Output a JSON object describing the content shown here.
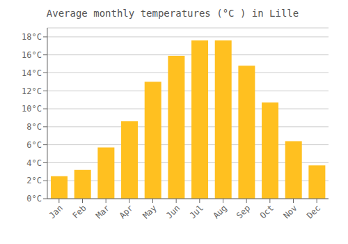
{
  "chart_data": {
    "type": "bar",
    "title": "Average monthly temperatures (°C ) in Lille",
    "categories": [
      "Jan",
      "Feb",
      "Mar",
      "Apr",
      "May",
      "Jun",
      "Jul",
      "Aug",
      "Sep",
      "Oct",
      "Nov",
      "Dec"
    ],
    "values": [
      2.5,
      3.2,
      5.7,
      8.6,
      13.0,
      15.9,
      17.6,
      17.6,
      14.8,
      10.7,
      6.4,
      3.7
    ],
    "color": "#FFC020",
    "ylim": [
      0,
      19
    ],
    "yticks": [
      {
        "value": 0,
        "label": "0°C"
      },
      {
        "value": 2,
        "label": "2°C"
      },
      {
        "value": 4,
        "label": "4°C"
      },
      {
        "value": 6,
        "label": "6°C"
      },
      {
        "value": 8,
        "label": "8°C"
      },
      {
        "value": 10,
        "label": "10°C"
      },
      {
        "value": 12,
        "label": "12°C"
      },
      {
        "value": 14,
        "label": "14°C"
      },
      {
        "value": 16,
        "label": "16°C"
      },
      {
        "value": 18,
        "label": "18°C"
      }
    ],
    "grid": true
  }
}
